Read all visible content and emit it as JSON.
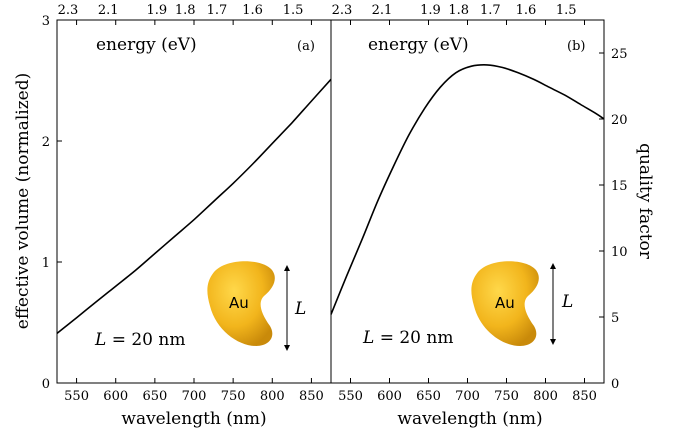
{
  "chart_data": [
    {
      "type": "line",
      "panel_label": "(a)",
      "xlabel": "wavelength (nm)",
      "ylabel": "effective volume (normalized)",
      "top_axis_label": "energy (eV)",
      "xlim": [
        525,
        875
      ],
      "ylim": [
        0,
        3
      ],
      "x_ticks": [
        "550",
        "600",
        "650",
        "700",
        "750",
        "800",
        "850"
      ],
      "y_ticks": [
        "0",
        "1",
        "2",
        "3"
      ],
      "top_ticks": [
        "2.3",
        "2.1",
        "1.9",
        "1.8",
        "1.7",
        "1.6",
        "1.5"
      ],
      "annotation": {
        "L": "L",
        "eq": " = 20 nm"
      },
      "particle_label": "Au",
      "dimension_label": "L",
      "series": [
        {
          "x": [
            525,
            550,
            575,
            600,
            625,
            650,
            675,
            700,
            725,
            750,
            775,
            800,
            825,
            850,
            875
          ],
          "values": [
            0.41,
            0.54,
            0.67,
            0.8,
            0.93,
            1.07,
            1.21,
            1.35,
            1.5,
            1.65,
            1.81,
            1.98,
            2.15,
            2.33,
            2.51
          ]
        }
      ]
    },
    {
      "type": "line",
      "panel_label": "(b)",
      "xlabel": "wavelength (nm)",
      "ylabel": "quality factor",
      "top_axis_label": "energy (eV)",
      "xlim": [
        525,
        875
      ],
      "ylim": [
        0,
        27.5
      ],
      "x_ticks": [
        "550",
        "600",
        "650",
        "700",
        "750",
        "800",
        "850"
      ],
      "y_ticks": [
        "0",
        "5",
        "10",
        "15",
        "20",
        "25"
      ],
      "top_ticks": [
        "2.3",
        "2.1",
        "1.9",
        "1.8",
        "1.7",
        "1.6",
        "1.5"
      ],
      "annotation": {
        "L": "L",
        "eq": " = 20 nm"
      },
      "particle_label": "Au",
      "dimension_label": "L",
      "series": [
        {
          "x": [
            525,
            545,
            565,
            585,
            605,
            625,
            645,
            665,
            685,
            705,
            725,
            745,
            765,
            785,
            805,
            825,
            845,
            865,
            875
          ],
          "values": [
            5.2,
            8.1,
            10.9,
            13.8,
            16.4,
            18.8,
            20.8,
            22.4,
            23.5,
            24.0,
            24.1,
            23.9,
            23.5,
            23.0,
            22.4,
            21.8,
            21.1,
            20.4,
            20.0
          ]
        }
      ]
    }
  ]
}
